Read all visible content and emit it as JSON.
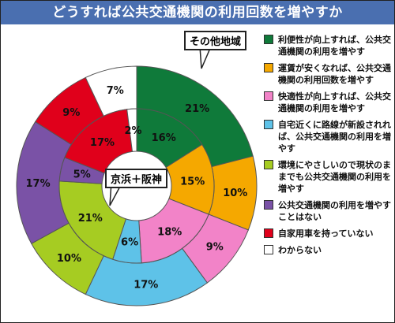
{
  "title": "どうすれば公共交通機関の利用回数を増やすか",
  "callouts": {
    "outer": "その他地域",
    "inner": "京浜＋阪神"
  },
  "legend": [
    {
      "label": "利便性が向上すれば、公共交通機関の利用を増やす",
      "color": "#0f7a3a"
    },
    {
      "label": "運賃が安くなれば、公共交通機関の利用回数を増やす",
      "color": "#f5a800"
    },
    {
      "label": "快適性が向上すれば、公共交通機関の利用を増やす",
      "color": "#f283c8"
    },
    {
      "label": "自宅近くに路線が新設されれば、公共交通機関の利用を増やす",
      "color": "#5ec2e8"
    },
    {
      "label": "環境にやさしいので現状のままでも公共交通機関の利用を増やす",
      "color": "#a6cc22"
    },
    {
      "label": "公共交通機関の利用を増やすことはない",
      "color": "#7a52a6"
    },
    {
      "label": "自家用車を持っていない",
      "color": "#e0001b"
    },
    {
      "label": "わからない",
      "color": "#ffffff"
    }
  ],
  "chart_data": [
    {
      "type": "pie",
      "name": "その他地域",
      "categories": [
        "利便性が向上すれば、公共交通機関の利用を増やす",
        "運賃が安くなれば、公共交通機関の利用回数を増やす",
        "快適性が向上すれば、公共交通機関の利用を増やす",
        "自宅近くに路線が新設されれば、公共交通機関の利用を増やす",
        "環境にやさしいので現状のままでも公共交通機関の利用を増やす",
        "公共交通機関の利用を増やすことはない",
        "自家用車を持っていない",
        "わからない"
      ],
      "values": [
        21,
        10,
        9,
        17,
        10,
        17,
        9,
        7
      ],
      "labels": [
        "21%",
        "10%",
        "9%",
        "17%",
        "10%",
        "17%",
        "9%",
        "7%"
      ],
      "unit": "%"
    },
    {
      "type": "pie",
      "name": "京浜＋阪神",
      "categories": [
        "利便性が向上すれば、公共交通機関の利用を増やす",
        "運賃が安くなれば、公共交通機関の利用回数を増やす",
        "快適性が向上すれば、公共交通機関の利用を増やす",
        "自宅近くに路線が新設されれば、公共交通機関の利用を増やす",
        "環境にやさしいので現状のままでも公共交通機関の利用を増やす",
        "公共交通機関の利用を増やすことはない",
        "自家用車を持っていない",
        "わからない"
      ],
      "values": [
        16,
        15,
        18,
        6,
        21,
        5,
        17,
        2
      ],
      "labels": [
        "16%",
        "15%",
        "18%",
        "6%",
        "21%",
        "5%",
        "17%",
        "2%"
      ],
      "unit": "%"
    }
  ]
}
